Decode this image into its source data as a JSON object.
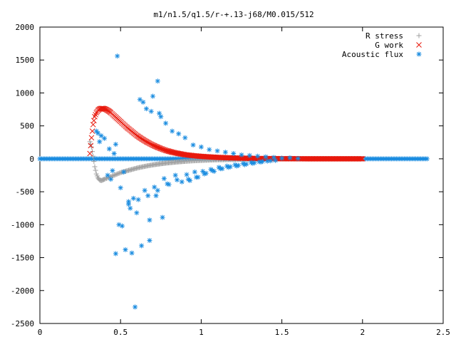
{
  "chart_data": {
    "type": "scatter",
    "title": "m1/n1.5/q1.5/r-+.13-j68/M0.015/512",
    "xlabel": "",
    "ylabel": "",
    "xlim": [
      0,
      2.5
    ],
    "ylim": [
      -2500,
      2000
    ],
    "x_ticks": [
      "0",
      "0.5",
      "1",
      "1.5",
      "2",
      "2.5"
    ],
    "y_ticks": [
      "2000",
      "1500",
      "1000",
      "500",
      "0",
      "-500",
      "-1000",
      "-1500",
      "-2000",
      "-2500"
    ],
    "grid": false,
    "legend_position": "top-right",
    "series": [
      {
        "name": "R stress",
        "marker": "+",
        "color": "#a0a0a0",
        "x": [
          0.31,
          0.32,
          0.33,
          0.34,
          0.35,
          0.36,
          0.37,
          0.38,
          0.39,
          0.4,
          0.42,
          0.44,
          0.46,
          0.48,
          0.5,
          0.52,
          0.55,
          0.58,
          0.61,
          0.64,
          0.67,
          0.7,
          0.74,
          0.78,
          0.82,
          0.86,
          0.9,
          0.95,
          1.0,
          1.05,
          1.1,
          1.15,
          1.2,
          1.25,
          1.3,
          1.35,
          1.4,
          1.45,
          1.5,
          1.55,
          1.6,
          1.7,
          1.8,
          1.9,
          2.0
        ],
        "y": [
          260,
          180,
          40,
          -120,
          -230,
          -290,
          -320,
          -330,
          -320,
          -310,
          -290,
          -270,
          -250,
          -230,
          -210,
          -195,
          -175,
          -155,
          -135,
          -120,
          -105,
          -92,
          -78,
          -65,
          -55,
          -46,
          -38,
          -30,
          -24,
          -19,
          -15,
          -12,
          -9,
          -7,
          -5,
          -4,
          -3,
          -2,
          -1,
          -1,
          0,
          0,
          0,
          0,
          0
        ]
      },
      {
        "name": "G work",
        "marker": "x",
        "color": "#e8180c",
        "x": [
          0.31,
          0.32,
          0.33,
          0.34,
          0.35,
          0.36,
          0.37,
          0.38,
          0.39,
          0.4,
          0.41,
          0.42,
          0.43,
          0.44,
          0.46,
          0.48,
          0.5,
          0.52,
          0.54,
          0.56,
          0.58,
          0.6,
          0.63,
          0.66,
          0.69,
          0.72,
          0.75,
          0.78,
          0.82,
          0.86,
          0.9,
          0.95,
          1.0,
          1.05,
          1.1,
          1.15,
          1.2,
          1.25,
          1.3,
          1.35,
          1.4,
          1.45,
          1.5,
          1.6,
          1.7,
          1.8,
          1.9,
          2.0
        ],
        "y": [
          80,
          320,
          520,
          640,
          700,
          735,
          755,
          765,
          765,
          760,
          750,
          735,
          720,
          700,
          655,
          610,
          565,
          520,
          475,
          435,
          395,
          355,
          305,
          260,
          220,
          185,
          155,
          128,
          100,
          80,
          62,
          48,
          37,
          29,
          22,
          17,
          13,
          10,
          7,
          5,
          4,
          3,
          2,
          1,
          0,
          0,
          0,
          0
        ]
      },
      {
        "name": "Acoustic flux",
        "marker": "*",
        "color": "#1a8ce0",
        "x": [
          0.48,
          0.73,
          0.62,
          0.59,
          0.53,
          0.57,
          0.76,
          0.68,
          0.63,
          0.51,
          0.45,
          0.42,
          0.47,
          0.55,
          0.38,
          0.4,
          0.43,
          0.56,
          0.6,
          0.66,
          0.7,
          0.74,
          0.78,
          0.82,
          0.86,
          0.9,
          0.95,
          1.0,
          1.05,
          1.1,
          1.15,
          1.2,
          1.25,
          1.3,
          1.35,
          1.4,
          1.45,
          1.5,
          1.55,
          1.6,
          0.35,
          0.36,
          0.37,
          0.44,
          0.5,
          0.65,
          0.72,
          0.8,
          0.88,
          0.93,
          0.98,
          1.03,
          1.08,
          1.13,
          1.18,
          1.23,
          1.28,
          1.33,
          1.38,
          1.43,
          0.64,
          0.69,
          0.75,
          0.52,
          0.58,
          0.46,
          0.67,
          0.71,
          0.77,
          0.84,
          0.92,
          0.97,
          1.02,
          1.07,
          1.12,
          1.17,
          1.22,
          1.27,
          1.32,
          1.37,
          0.47,
          0.49,
          0.55,
          0.61,
          0.68,
          0.73,
          0.79,
          0.85,
          0.91,
          0.96,
          1.01,
          1.06,
          1.11,
          1.16,
          1.21,
          1.26,
          1.31,
          1.36,
          1.41,
          1.46
        ],
        "y": [
          1560,
          1180,
          900,
          -2250,
          -1380,
          -1430,
          -890,
          -1240,
          -1320,
          -1020,
          -180,
          -250,
          220,
          -650,
          350,
          310,
          150,
          -750,
          -820,
          760,
          950,
          690,
          540,
          420,
          380,
          320,
          210,
          180,
          140,
          120,
          100,
          80,
          60,
          50,
          40,
          30,
          20,
          10,
          15,
          5,
          420,
          390,
          260,
          -310,
          -440,
          -480,
          -560,
          -390,
          -350,
          -330,
          -280,
          -220,
          -190,
          -150,
          -120,
          -100,
          -80,
          -60,
          -40,
          -30,
          860,
          720,
          640,
          -200,
          -600,
          80,
          -560,
          -430,
          -300,
          -250,
          -310,
          -280,
          -230,
          -180,
          -150,
          -130,
          -110,
          -90,
          -70,
          -50,
          -1440,
          -1000,
          -690,
          -620,
          -930,
          -480,
          -380,
          -320,
          -240,
          -200,
          -190,
          -160,
          -130,
          -110,
          -90,
          -70,
          -55,
          -45,
          -35,
          -25
        ],
        "baseline_from": 0,
        "baseline_to": 2.4,
        "baseline_value": 0
      }
    ]
  }
}
